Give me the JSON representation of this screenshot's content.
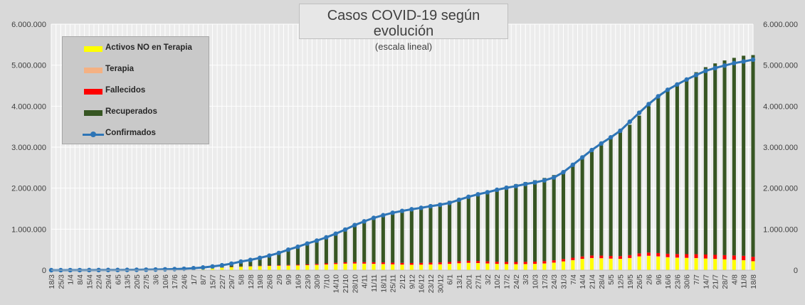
{
  "chart_data": {
    "type": "area",
    "title": "Casos COVID-19 según evolución",
    "subtitle": "(escala lineal)",
    "ylim": [
      0,
      6000000
    ],
    "y_ticks": [
      "0",
      "1.000.000",
      "2.000.000",
      "3.000.000",
      "4.000.000",
      "5.000.000",
      "6.000.000"
    ],
    "y2_ticks": [
      "0",
      "1.000.000",
      "2.000.000",
      "3.000.000",
      "4.000.000",
      "5.000.000",
      "6.000.000"
    ],
    "x_tick_labels": [
      "18/3",
      "25/3",
      "1/4",
      "8/4",
      "15/4",
      "22/4",
      "29/4",
      "6/5",
      "13/5",
      "20/5",
      "27/5",
      "3/6",
      "10/6",
      "17/6",
      "24/6",
      "1/7",
      "8/7",
      "15/7",
      "22/7",
      "29/7",
      "5/8",
      "12/8",
      "19/8",
      "26/8",
      "2/9",
      "9/9",
      "16/9",
      "23/9",
      "30/9",
      "7/10",
      "14/10",
      "21/10",
      "28/10",
      "4/11",
      "11/11",
      "18/11",
      "25/11",
      "2/12",
      "9/12",
      "16/12",
      "23/12",
      "30/12",
      "6/1",
      "13/1",
      "20/1",
      "27/1",
      "3/2",
      "10/2",
      "17/2",
      "24/2",
      "3/3",
      "10/3",
      "17/3",
      "24/3",
      "31/3",
      "7/4",
      "14/4",
      "21/4",
      "28/4",
      "5/5",
      "12/5",
      "19/5",
      "26/5",
      "2/6",
      "9/6",
      "16/6",
      "23/6",
      "30/6",
      "7/7",
      "14/7",
      "21/7",
      "28/7",
      "4/8",
      "11/8",
      "18/8"
    ],
    "grid": true,
    "legend_position": "top-left",
    "series": [
      {
        "name": "Activos NO en Terapia",
        "color": "#ffff00",
        "values": [
          0,
          200,
          600,
          1000,
          1500,
          1800,
          2200,
          2500,
          3500,
          5000,
          7000,
          9000,
          12000,
          16000,
          22000,
          30000,
          38000,
          48000,
          58000,
          70000,
          80000,
          88000,
          95000,
          100000,
          105000,
          108000,
          112000,
          118000,
          125000,
          135000,
          145000,
          155000,
          158000,
          155000,
          150000,
          145000,
          138000,
          132000,
          128000,
          130000,
          135000,
          140000,
          150000,
          165000,
          175000,
          170000,
          160000,
          150000,
          145000,
          142000,
          145000,
          150000,
          160000,
          180000,
          210000,
          240000,
          270000,
          290000,
          285000,
          275000,
          270000,
          290000,
          330000,
          345000,
          330000,
          310000,
          300000,
          295000,
          290000,
          280000,
          270000,
          260000,
          250000,
          240000,
          215000
        ]
      },
      {
        "name": "Terapia",
        "color": "#f4b183",
        "values": [
          0,
          100,
          200,
          300,
          400,
          500,
          500,
          500,
          500,
          500,
          500,
          600,
          700,
          800,
          1000,
          1200,
          1500,
          1800,
          2000,
          2200,
          2300,
          2400,
          2500,
          2600,
          2700,
          3000,
          3200,
          3400,
          3600,
          3800,
          4200,
          4500,
          4800,
          4700,
          4500,
          4300,
          4000,
          3800,
          3500,
          3300,
          3300,
          3400,
          3500,
          3700,
          3800,
          3700,
          3600,
          3500,
          3400,
          3400,
          3500,
          3500,
          3600,
          3800,
          4200,
          4800,
          5500,
          6200,
          6800,
          7000,
          6800,
          6500,
          6600,
          7000,
          7300,
          7100,
          6800,
          6300,
          5800,
          5300,
          4800,
          4400,
          4000,
          3600,
          3200
        ]
      },
      {
        "name": "Fallecidos",
        "color": "#ff0000",
        "values": [
          0,
          20,
          50,
          100,
          200,
          350,
          500,
          650,
          800,
          900,
          1000,
          1200,
          1400,
          1700,
          2000,
          2400,
          3000,
          3600,
          4500,
          5600,
          6700,
          8000,
          9600,
          11500,
          13200,
          15000,
          17500,
          20000,
          23000,
          26000,
          29000,
          32000,
          34500,
          36500,
          38500,
          39800,
          41000,
          42000,
          43000,
          44000,
          44800,
          45600,
          46500,
          47500,
          48800,
          50200,
          51500,
          52500,
          53000,
          54000,
          55000,
          55500,
          56000,
          56500,
          57500,
          58500,
          59500,
          61000,
          63000,
          65000,
          67500,
          70000,
          73000,
          76000,
          80000,
          83000,
          86000,
          89000,
          93000,
          96000,
          98500,
          101500,
          104500,
          106800,
          108300
        ]
      },
      {
        "name": "Recuperados",
        "color": "#375623",
        "values": [
          0,
          50,
          200,
          500,
          900,
          1300,
          1800,
          2300,
          2800,
          3300,
          4000,
          4500,
          5500,
          7000,
          9000,
          14000,
          22000,
          33000,
          50000,
          70000,
          100000,
          140000,
          190000,
          240000,
          300000,
          370000,
          430000,
          500000,
          570000,
          640000,
          710000,
          800000,
          900000,
          990000,
          1080000,
          1150000,
          1210000,
          1270000,
          1320000,
          1370000,
          1410000,
          1450000,
          1490000,
          1540000,
          1590000,
          1650000,
          1720000,
          1790000,
          1850000,
          1900000,
          1945000,
          1985000,
          2030000,
          2080000,
          2140000,
          2240000,
          2380000,
          2530000,
          2690000,
          2860000,
          3020000,
          3180000,
          3360000,
          3570000,
          3790000,
          3970000,
          4130000,
          4290000,
          4440000,
          4570000,
          4670000,
          4750000,
          4820000,
          4880000,
          4920000
        ]
      },
      {
        "name": "Confirmados",
        "color": "#2e75b6",
        "values": [
          0,
          500,
          1300,
          1900,
          2600,
          3300,
          4200,
          5000,
          6300,
          8500,
          12000,
          15000,
          21000,
          26000,
          34000,
          48000,
          65000,
          90000,
          120000,
          160000,
          210000,
          250000,
          300000,
          355000,
          420000,
          500000,
          570000,
          650000,
          720000,
          800000,
          890000,
          990000,
          1100000,
          1190000,
          1275000,
          1340000,
          1400000,
          1445000,
          1485000,
          1520000,
          1560000,
          1595000,
          1640000,
          1715000,
          1790000,
          1850000,
          1900000,
          1960000,
          2010000,
          2050000,
          2100000,
          2140000,
          2190000,
          2260000,
          2390000,
          2570000,
          2750000,
          2930000,
          3090000,
          3240000,
          3400000,
          3620000,
          3840000,
          4050000,
          4240000,
          4400000,
          4530000,
          4650000,
          4760000,
          4860000,
          4930000,
          4990000,
          5050000,
          5090000,
          5135000
        ]
      }
    ]
  }
}
